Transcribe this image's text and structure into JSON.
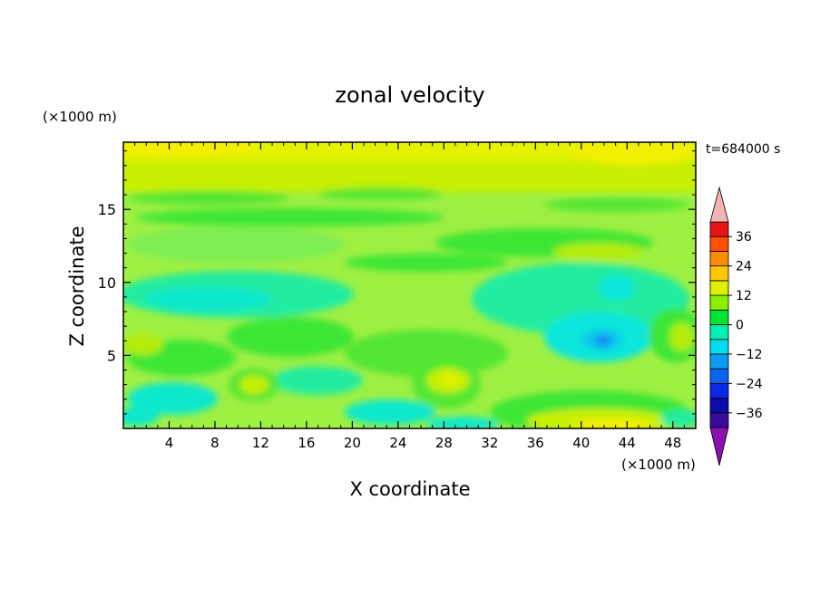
{
  "chart_data": {
    "type": "heatmap",
    "title": "zonal velocity",
    "xlabel": "X coordinate",
    "ylabel": "Z coordinate",
    "x_unit": "(×1000 m)",
    "y_unit": "(×1000 m)",
    "time_label": "t=684000 s",
    "xlim": [
      0,
      50
    ],
    "ylim": [
      0,
      19.6
    ],
    "x_ticks": [
      4,
      8,
      12,
      16,
      20,
      24,
      28,
      32,
      36,
      40,
      44,
      48
    ],
    "y_ticks": [
      5,
      10,
      15
    ],
    "colorbar": {
      "labels": [
        "36",
        "24",
        "12",
        "0",
        "−12",
        "−24",
        "−36"
      ],
      "label_values": [
        36,
        24,
        12,
        0,
        -12,
        -24,
        -36
      ],
      "levels": [
        -42,
        -36,
        -30,
        -24,
        -18,
        -12,
        -6,
        0,
        6,
        12,
        18,
        24,
        30,
        36,
        42
      ],
      "colors": [
        "#6a0aa8",
        "#3a0a9e",
        "#0c0caa",
        "#0a28e6",
        "#0a64f0",
        "#0a9cf0",
        "#00dcf0",
        "#00f0b4",
        "#00e632",
        "#8cf000",
        "#dcf000",
        "#ffc800",
        "#ff8c00",
        "#ff5000",
        "#e61414",
        "#f0aaaa"
      ],
      "under_color": "#8a10b0",
      "over_color": "#f5b4b4"
    },
    "field_description": "Contour field: background ~0 to +6 (light green/cyan-green); upper band z>15 greener to yellow (+6..+18); cyan negative pockets (-6..-12) at mid-lower levels; min ~ -24 near x=41.5, z=6.2; positive yellow-green blobs near x=29, z=3.5 and x=11, z=3; yellow at bottom x=40-46.",
    "samples": [
      {
        "x": 41.5,
        "z": 6.2,
        "value": -24
      },
      {
        "x": 29,
        "z": 3.5,
        "value": 14
      },
      {
        "x": 11,
        "z": 3,
        "value": 10
      },
      {
        "x": 42,
        "z": 0.5,
        "value": 16
      },
      {
        "x": 45,
        "z": 18.8,
        "value": 18
      },
      {
        "x": 5,
        "z": 19,
        "value": 16
      }
    ]
  }
}
